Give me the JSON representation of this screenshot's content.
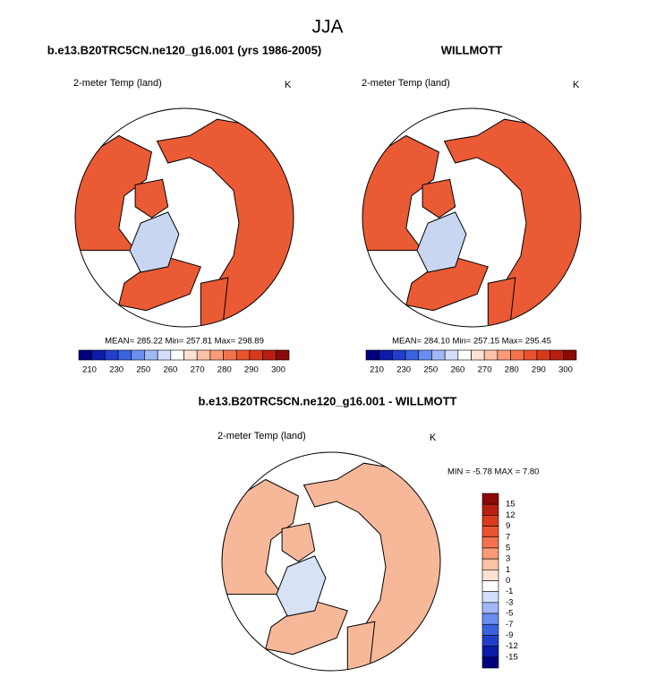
{
  "title": "JJA",
  "panels": [
    {
      "title": "b.e13.B20TRC5CN.ne120_g16.001 (yrs 1986-2005)",
      "variable": "2-meter Temp (land)",
      "units": "K",
      "stats": "MEAN= 285.22  Min= 257.81  Max= 298.89"
    },
    {
      "title": "WILLMOTT",
      "variable": "2-meter Temp (land)",
      "units": "K",
      "stats": "MEAN= 284.10  Min= 257.15  Max= 295.45"
    }
  ],
  "abs_colorbar": {
    "labels": [
      210,
      230,
      250,
      260,
      270,
      280,
      290,
      300
    ],
    "colors": [
      "#00007f",
      "#0a1ca8",
      "#1f3fcc",
      "#3a63e0",
      "#6a8ef0",
      "#a0b8f5",
      "#d3defa",
      "#ffffff",
      "#fde2d2",
      "#fcc2a6",
      "#f99b76",
      "#f4734e",
      "#ea5330",
      "#d93a1c",
      "#b81f12",
      "#8b0a06"
    ]
  },
  "difference": {
    "title": "b.e13.B20TRC5CN.ne120_g16.001 - WILLMOTT",
    "variable": "2-meter Temp (land)",
    "units": "K",
    "stats": "MIN =  -5.78 MAX =  7.80"
  },
  "diff_colorbar": {
    "labels": [
      15,
      12,
      9,
      7,
      5,
      3,
      1,
      0,
      -1,
      -3,
      -5,
      -7,
      -9,
      -12,
      -15
    ],
    "colors": [
      "#8b0a06",
      "#b81f12",
      "#d93a1c",
      "#ea5330",
      "#f4734e",
      "#f99b76",
      "#fcc2a6",
      "#fde2d2",
      "#ffffff",
      "#d3defa",
      "#a0b8f5",
      "#6a8ef0",
      "#3a63e0",
      "#1f3fcc",
      "#0a1ca8",
      "#00007f"
    ]
  }
}
